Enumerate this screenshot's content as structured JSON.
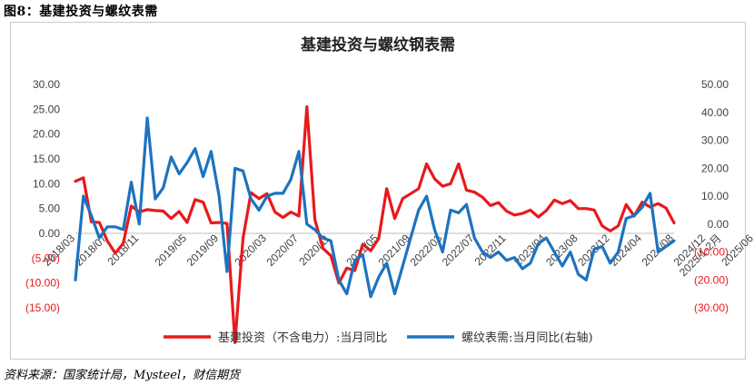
{
  "figure_label": "图8：基建投资与螺纹表需",
  "source": "资料来源：国家统计局，Mysteel，财信期货",
  "colors": {
    "left_series": "#e8191c",
    "right_series": "#1d73bf",
    "neg_tick": "#e8191c",
    "tick": "#404040"
  },
  "chart_data": {
    "type": "line",
    "title": "基建投资与螺纹钢表需",
    "xlabel": "",
    "ylabel": "",
    "ylim": [
      -15,
      30
    ],
    "y2lim": [
      -30,
      50
    ],
    "grid": false,
    "legend_placement": "bottom",
    "yticks": [
      {
        "value": 30,
        "label": "30.00"
      },
      {
        "value": 25,
        "label": "25.00"
      },
      {
        "value": 20,
        "label": "20.00"
      },
      {
        "value": 15,
        "label": "15.00"
      },
      {
        "value": 10,
        "label": "10.00"
      },
      {
        "value": 5,
        "label": "5.00"
      },
      {
        "value": 0,
        "label": "0.00"
      },
      {
        "value": -5,
        "label": "(5.00)"
      },
      {
        "value": -10,
        "label": "(10.00)"
      },
      {
        "value": -15,
        "label": "(15.00)"
      }
    ],
    "y2ticks": [
      {
        "value": 50,
        "label": "50.00"
      },
      {
        "value": 40,
        "label": "40.00"
      },
      {
        "value": 30,
        "label": "30.00"
      },
      {
        "value": 20,
        "label": "20.00"
      },
      {
        "value": 10,
        "label": "10.00"
      },
      {
        "value": 0,
        "label": "0.00"
      },
      {
        "value": -10,
        "label": "(10.00)"
      },
      {
        "value": -20,
        "label": "(20.00)"
      },
      {
        "value": -30,
        "label": "(30.00)"
      }
    ],
    "xtick_labels": [
      {
        "index": 0,
        "label": "2018/03"
      },
      {
        "index": 4,
        "label": "2018/07"
      },
      {
        "index": 8,
        "label": "2018/11"
      },
      {
        "index": 14,
        "label": "2019/05"
      },
      {
        "index": 18,
        "label": "2019/09"
      },
      {
        "index": 24,
        "label": "2020/03"
      },
      {
        "index": 28,
        "label": "2020/07"
      },
      {
        "index": 32,
        "label": "2020/11"
      },
      {
        "index": 38,
        "label": "2021/05"
      },
      {
        "index": 42,
        "label": "2021/09"
      },
      {
        "index": 46,
        "label": "2022/03"
      },
      {
        "index": 50,
        "label": "2022/07"
      },
      {
        "index": 54,
        "label": "2022/11"
      },
      {
        "index": 59,
        "label": "2023/04"
      },
      {
        "index": 63,
        "label": "2023/08"
      },
      {
        "index": 67,
        "label": "2023/12"
      },
      {
        "index": 71,
        "label": "2024/04"
      },
      {
        "index": 75,
        "label": "2024/08"
      },
      {
        "index": 79,
        "label": "2024/12"
      },
      {
        "index": 81,
        "label": "2025/1-2月"
      },
      {
        "index": 85,
        "label": "2025/06"
      }
    ],
    "series": [
      {
        "name": "基建投资（不含电力）:当月同比",
        "axis": "left",
        "values": [
          10.5,
          11.2,
          2.3,
          2.2,
          -1.5,
          -4.0,
          -2.0,
          5.5,
          4.3,
          4.8,
          4.6,
          4.5,
          3.0,
          4.4,
          2.2,
          6.8,
          6.3,
          2.1,
          2.2,
          2.0,
          -22.0,
          -1.0,
          8.2,
          7.0,
          8.0,
          4.3,
          3.2,
          4.3,
          3.5,
          25.5,
          2.8,
          -3.0,
          -4.5,
          -10.0,
          -7.0,
          -7.5,
          -2.2,
          -3.5,
          -1.0,
          9.0,
          3.0,
          7.0,
          8.0,
          9.0,
          14.0,
          11.0,
          9.5,
          10.0,
          14.0,
          8.7,
          8.3,
          7.3,
          5.6,
          6.2,
          4.5,
          3.7,
          4.0,
          4.7,
          3.3,
          4.6,
          6.7,
          6.0,
          6.6,
          5.0,
          5.0,
          4.7,
          1.5,
          0.5,
          1.5,
          5.8,
          3.5,
          6.3,
          5.3,
          6.0,
          5.1,
          2.1
        ]
      },
      {
        "name": "螺纹表需:当月同比(右轴)",
        "axis": "right",
        "values": [
          -20,
          10,
          3,
          -5,
          -1,
          -1,
          -2,
          15,
          0,
          38,
          9,
          13,
          24,
          18,
          22,
          27,
          17,
          26,
          10,
          -17,
          20,
          19,
          9,
          5,
          10,
          11,
          11,
          16,
          26,
          0,
          -2,
          -5,
          -6,
          -20,
          -25,
          -13,
          -11,
          -26,
          -19,
          -14,
          -25,
          -15,
          -5,
          5,
          10,
          -2,
          -10,
          5,
          4,
          7,
          -5,
          -10,
          -12,
          -10,
          -13,
          -12,
          -16,
          -14,
          -7,
          -5,
          -10,
          -15,
          -10,
          -18,
          -20,
          -9,
          -8,
          -14,
          -10,
          2,
          3,
          6,
          11,
          -10,
          -8,
          -6
        ]
      }
    ]
  }
}
